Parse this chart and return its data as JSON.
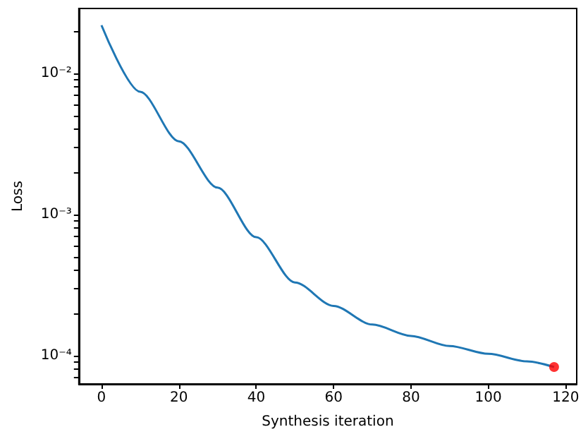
{
  "chart_data": {
    "type": "line",
    "xlabel": "Synthesis iteration",
    "ylabel": "Loss",
    "log": "y",
    "xlim": [
      -5.85,
      122.85
    ],
    "xticks": [
      0,
      20,
      40,
      60,
      80,
      100,
      120
    ],
    "ylim": [
      6.3e-05,
      0.0288
    ],
    "yticks": [
      {
        "value": 7e-05,
        "label": null
      },
      {
        "value": 8e-05,
        "label": null
      },
      {
        "value": 9e-05,
        "label": null
      },
      {
        "value": 0.0001,
        "label": "10⁻⁴"
      },
      {
        "value": 0.0002,
        "label": null
      },
      {
        "value": 0.0003,
        "label": null
      },
      {
        "value": 0.0004,
        "label": null
      },
      {
        "value": 0.0005,
        "label": null
      },
      {
        "value": 0.0006,
        "label": null
      },
      {
        "value": 0.0007,
        "label": null
      },
      {
        "value": 0.0008,
        "label": null
      },
      {
        "value": 0.0009,
        "label": null
      },
      {
        "value": 0.001,
        "label": "10⁻³"
      },
      {
        "value": 0.002,
        "label": null
      },
      {
        "value": 0.003,
        "label": null
      },
      {
        "value": 0.004,
        "label": null
      },
      {
        "value": 0.005,
        "label": null
      },
      {
        "value": 0.006,
        "label": null
      },
      {
        "value": 0.007,
        "label": null
      },
      {
        "value": 0.008,
        "label": null
      },
      {
        "value": 0.009,
        "label": null
      },
      {
        "value": 0.01,
        "label": "10⁻²"
      },
      {
        "value": 0.02,
        "label": null
      }
    ],
    "grid": false,
    "series": [
      {
        "color": "#1f77b4",
        "marker": "none",
        "x": [
          0,
          10,
          20,
          30,
          40,
          50,
          60,
          70,
          80,
          90,
          100,
          110,
          117
        ],
        "values": [
          0.0219,
          0.0074,
          0.0033,
          0.00155,
          0.00069,
          0.00033,
          0.000225,
          0.000166,
          0.000138,
          0.000117,
          0.000103,
          9.1e-05,
          8.3e-05
        ]
      },
      {
        "type": "scatter",
        "color": "#ff0000",
        "marker": "circle",
        "x": [
          117
        ],
        "values": [
          8.3e-05
        ]
      }
    ]
  }
}
